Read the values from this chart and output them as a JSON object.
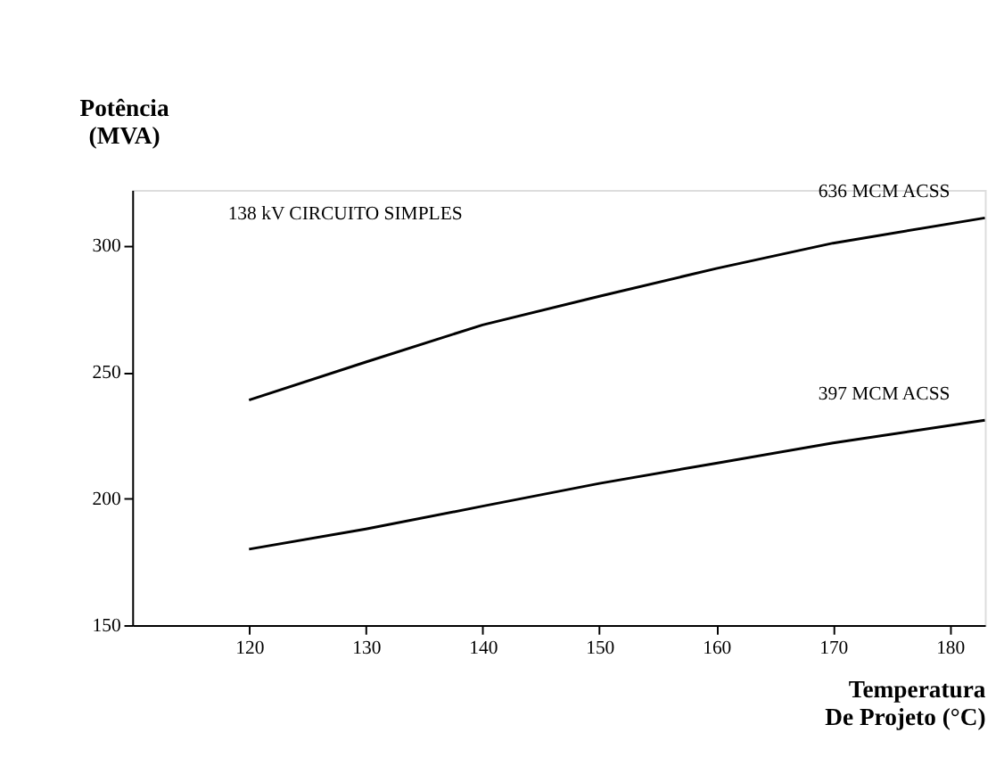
{
  "chart_data": {
    "type": "line",
    "xlabel": "Temperatura\nDe Projeto (°C)",
    "ylabel": "Potência\n(MVA)",
    "annotations": [
      "138 kV CIRCUITO SIMPLES"
    ],
    "x": [
      120,
      130,
      140,
      150,
      160,
      170,
      183
    ],
    "series": [
      {
        "name": "636 MCM ACSS",
        "color": "#000000",
        "values": [
          239,
          254,
          268.7,
          280,
          291,
          301,
          311
        ]
      },
      {
        "name": "397 MCM ACSS",
        "color": "#000000",
        "values": [
          180,
          188,
          197,
          206,
          214,
          222,
          231
        ]
      }
    ],
    "xlim": [
      110,
      183
    ],
    "ylim": [
      150,
      322
    ],
    "xticks": [
      120,
      130,
      140,
      150,
      160,
      170,
      180
    ],
    "yticks": [
      150,
      200,
      250,
      300
    ],
    "grid": false,
    "legend": false,
    "marker": "none",
    "line_style": "solid"
  }
}
